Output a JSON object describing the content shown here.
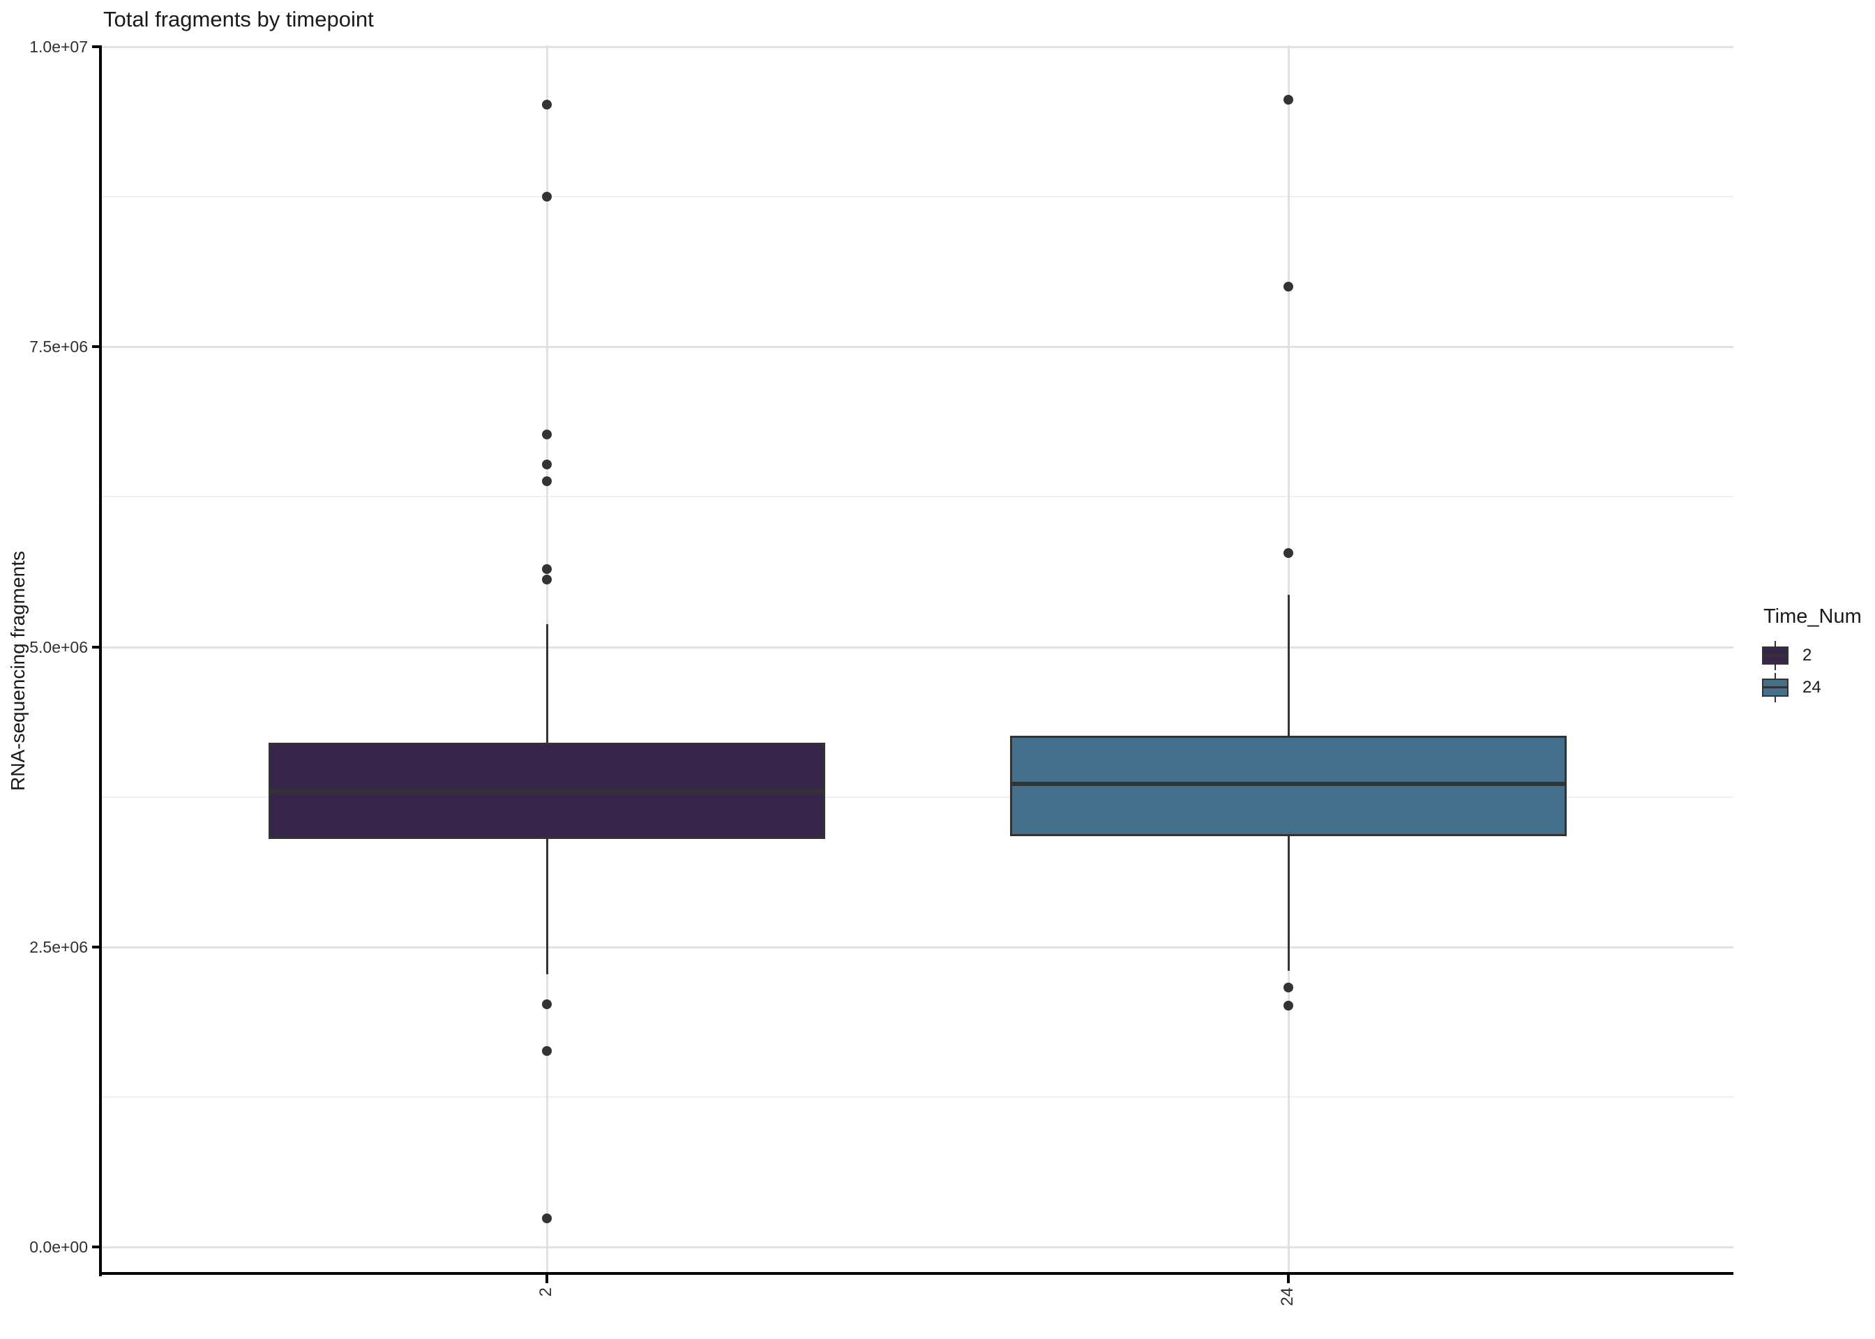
{
  "title": "Total fragments by timepoint",
  "y_axis": {
    "label": "RNA-sequencing fragments",
    "tick_labels": [
      "0.0e+00",
      "2.5e+06",
      "5.0e+06",
      "7.5e+06",
      "1.0e+07"
    ]
  },
  "x_axis": {
    "categories": [
      "2",
      "24"
    ]
  },
  "legend": {
    "title": "Time_Num",
    "items": [
      {
        "label": "2",
        "color": "#37254A"
      },
      {
        "label": "24",
        "color": "#44708D"
      }
    ]
  },
  "colors": {
    "box_fill_2": "#37254A",
    "box_fill_24": "#44708D",
    "stroke": "#333333",
    "grid_major": "#e2e2e2",
    "grid_minor": "#f0f0f0",
    "background": "#ffffff"
  },
  "chart_data": {
    "type": "boxplot",
    "title": "Total fragments by timepoint",
    "xlabel": "",
    "ylabel": "RNA-sequencing fragments",
    "categories": [
      "2",
      "24"
    ],
    "ylim": [
      0,
      10000000
    ],
    "yticks": {
      "values": [
        0,
        2500000,
        5000000,
        7500000,
        10000000
      ],
      "labels": [
        "0.0e+00",
        "2.5e+06",
        "5.0e+06",
        "7.5e+06",
        "1.0e+07"
      ]
    },
    "grid": "major+minor",
    "legend_position": "right",
    "legend_title": "Time_Num",
    "series": [
      {
        "name": "2",
        "color": "#37254A",
        "whisker_low": 2270000,
        "q1": 3400000,
        "median": 3800000,
        "q3": 4200000,
        "whisker_high": 5190000,
        "outliers": [
          9520000,
          8750000,
          6770000,
          6520000,
          6380000,
          5650000,
          5560000,
          2020000,
          1630000,
          240000
        ]
      },
      {
        "name": "24",
        "color": "#44708D",
        "whisker_low": 2300000,
        "q1": 3420000,
        "median": 3860000,
        "q3": 4260000,
        "whisker_high": 5430000,
        "outliers": [
          9560000,
          8000000,
          5780000,
          2160000,
          2010000
        ]
      }
    ]
  }
}
